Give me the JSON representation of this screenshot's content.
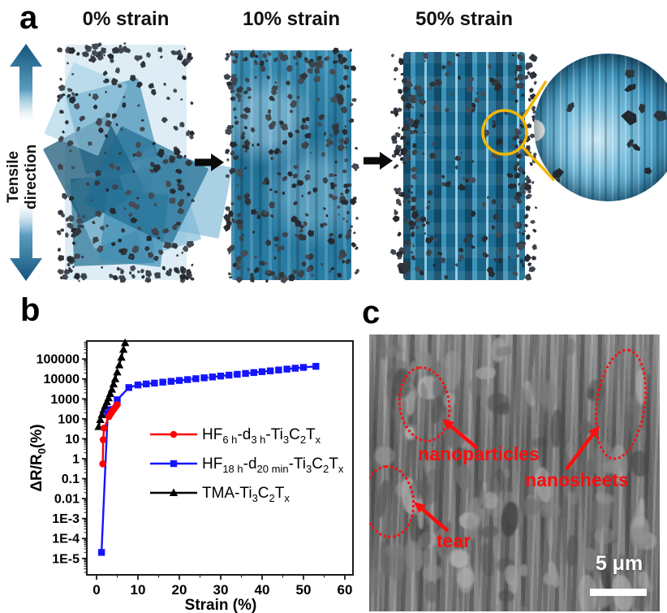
{
  "panel_a": {
    "label": "a",
    "tensile_label": "Tensile direction",
    "states": [
      {
        "title": "0% strain"
      },
      {
        "title": "10% strain"
      },
      {
        "title": "50% strain"
      }
    ]
  },
  "panel_b": {
    "label": "b"
  },
  "panel_c": {
    "label": "c",
    "annotations": {
      "nanoparticles": "nanoparticles",
      "nanosheets": "nanosheets",
      "tear": "tear"
    },
    "scale_bar_label": "5 μm"
  },
  "chart_data": {
    "type": "line",
    "title": "",
    "xlabel": "Strain (%)",
    "ylabel_segments": [
      {
        "t": "ΔR/R"
      },
      {
        "s": "0"
      },
      {
        "t": "(%)"
      }
    ],
    "x_ticks": [
      0,
      10,
      20,
      30,
      40,
      50,
      60
    ],
    "xlim": [
      0,
      60
    ],
    "y_scale": "log",
    "ylim": [
      1.5e-06,
      800000
    ],
    "y_ticks": [
      {
        "v": 100000,
        "label": "100000"
      },
      {
        "v": 10000,
        "label": "10000"
      },
      {
        "v": 1000,
        "label": "1000"
      },
      {
        "v": 100,
        "label": "100"
      },
      {
        "v": 10,
        "label": "10"
      },
      {
        "v": 1,
        "label": "1"
      },
      {
        "v": 0.1,
        "label": "0.1"
      },
      {
        "v": 0.01,
        "label": "0.01"
      },
      {
        "v": 0.001,
        "label": "1E-3"
      },
      {
        "v": 0.0001,
        "label": "1E-4"
      },
      {
        "v": 1e-05,
        "label": "1E-5"
      }
    ],
    "grid": false,
    "legend_position": "inside-right",
    "series": [
      {
        "name": "HF6h-d3h-Ti3C2Tx",
        "label_segments": [
          {
            "t": "HF"
          },
          {
            "s": "6 h"
          },
          {
            "t": "-d"
          },
          {
            "s": "3 h"
          },
          {
            "t": "-Ti"
          },
          {
            "s": "3"
          },
          {
            "t": "C"
          },
          {
            "s": "2"
          },
          {
            "t": "T"
          },
          {
            "s": "x"
          }
        ],
        "color": "#ff0000",
        "marker": "circle",
        "dash": "none",
        "points": [
          [
            1.5,
            0.55
          ],
          [
            1.6,
            9
          ],
          [
            1.8,
            34
          ],
          [
            3.0,
            130
          ],
          [
            3.3,
            165
          ],
          [
            3.6,
            205
          ],
          [
            3.9,
            260
          ],
          [
            4.3,
            330
          ],
          [
            4.7,
            430
          ],
          [
            5.0,
            520
          ]
        ]
      },
      {
        "name": "HF18h-d20min-Ti3C2Tx",
        "label_segments": [
          {
            "t": "HF"
          },
          {
            "s": "18 h"
          },
          {
            "t": "-d"
          },
          {
            "s": "20 min"
          },
          {
            "t": "-Ti"
          },
          {
            "s": "3"
          },
          {
            "t": "C"
          },
          {
            "s": "2"
          },
          {
            "t": "T"
          },
          {
            "s": "x"
          }
        ],
        "color": "#1414ff",
        "marker": "square",
        "dash": "dash",
        "solid_until": 4,
        "points": [
          [
            1.2,
            2e-05
          ],
          [
            2.7,
            200
          ],
          [
            3.5,
            290
          ],
          [
            5.0,
            900
          ],
          [
            7.8,
            3700
          ],
          [
            10,
            5000
          ],
          [
            12,
            5600
          ],
          [
            14,
            6200
          ],
          [
            16,
            6900
          ],
          [
            18,
            7600
          ],
          [
            20,
            8400
          ],
          [
            22,
            9300
          ],
          [
            24,
            10300
          ],
          [
            26,
            11400
          ],
          [
            28,
            12600
          ],
          [
            30,
            14000
          ],
          [
            32,
            15500
          ],
          [
            34,
            17100
          ],
          [
            36,
            18900
          ],
          [
            38,
            20900
          ],
          [
            40,
            23100
          ],
          [
            42,
            25500
          ],
          [
            44,
            28200
          ],
          [
            46,
            31200
          ],
          [
            48,
            34500
          ],
          [
            50,
            38000
          ],
          [
            53,
            43000
          ]
        ]
      },
      {
        "name": "TMA-Ti3C2Tx",
        "label_segments": [
          {
            "t": "TMA-Ti"
          },
          {
            "s": "3"
          },
          {
            "t": "C"
          },
          {
            "s": "2"
          },
          {
            "t": "T"
          },
          {
            "s": "x"
          }
        ],
        "color": "#000000",
        "marker": "triangle",
        "dash": "dash",
        "points": [
          [
            0.5,
            40
          ],
          [
            0.9,
            90
          ],
          [
            1.3,
            160
          ],
          [
            1.7,
            280
          ],
          [
            2.1,
            450
          ],
          [
            2.5,
            700
          ],
          [
            2.9,
            1100
          ],
          [
            3.3,
            1800
          ],
          [
            3.7,
            3000
          ],
          [
            4.1,
            5500
          ],
          [
            4.5,
            10000
          ],
          [
            5.0,
            22000
          ],
          [
            5.5,
            50000
          ],
          [
            6.0,
            120000
          ],
          [
            6.5,
            300000
          ],
          [
            6.9,
            650000
          ]
        ]
      }
    ]
  },
  "colors": {
    "annotation_red": "#ff0d0d",
    "magnifier_yellow": "#f2b705",
    "mxene_blue_dark": "#176487",
    "mxene_blue_light": "#8ec9e2",
    "particle_gray": "#31363d",
    "axis_black": "#1a1a1a"
  }
}
